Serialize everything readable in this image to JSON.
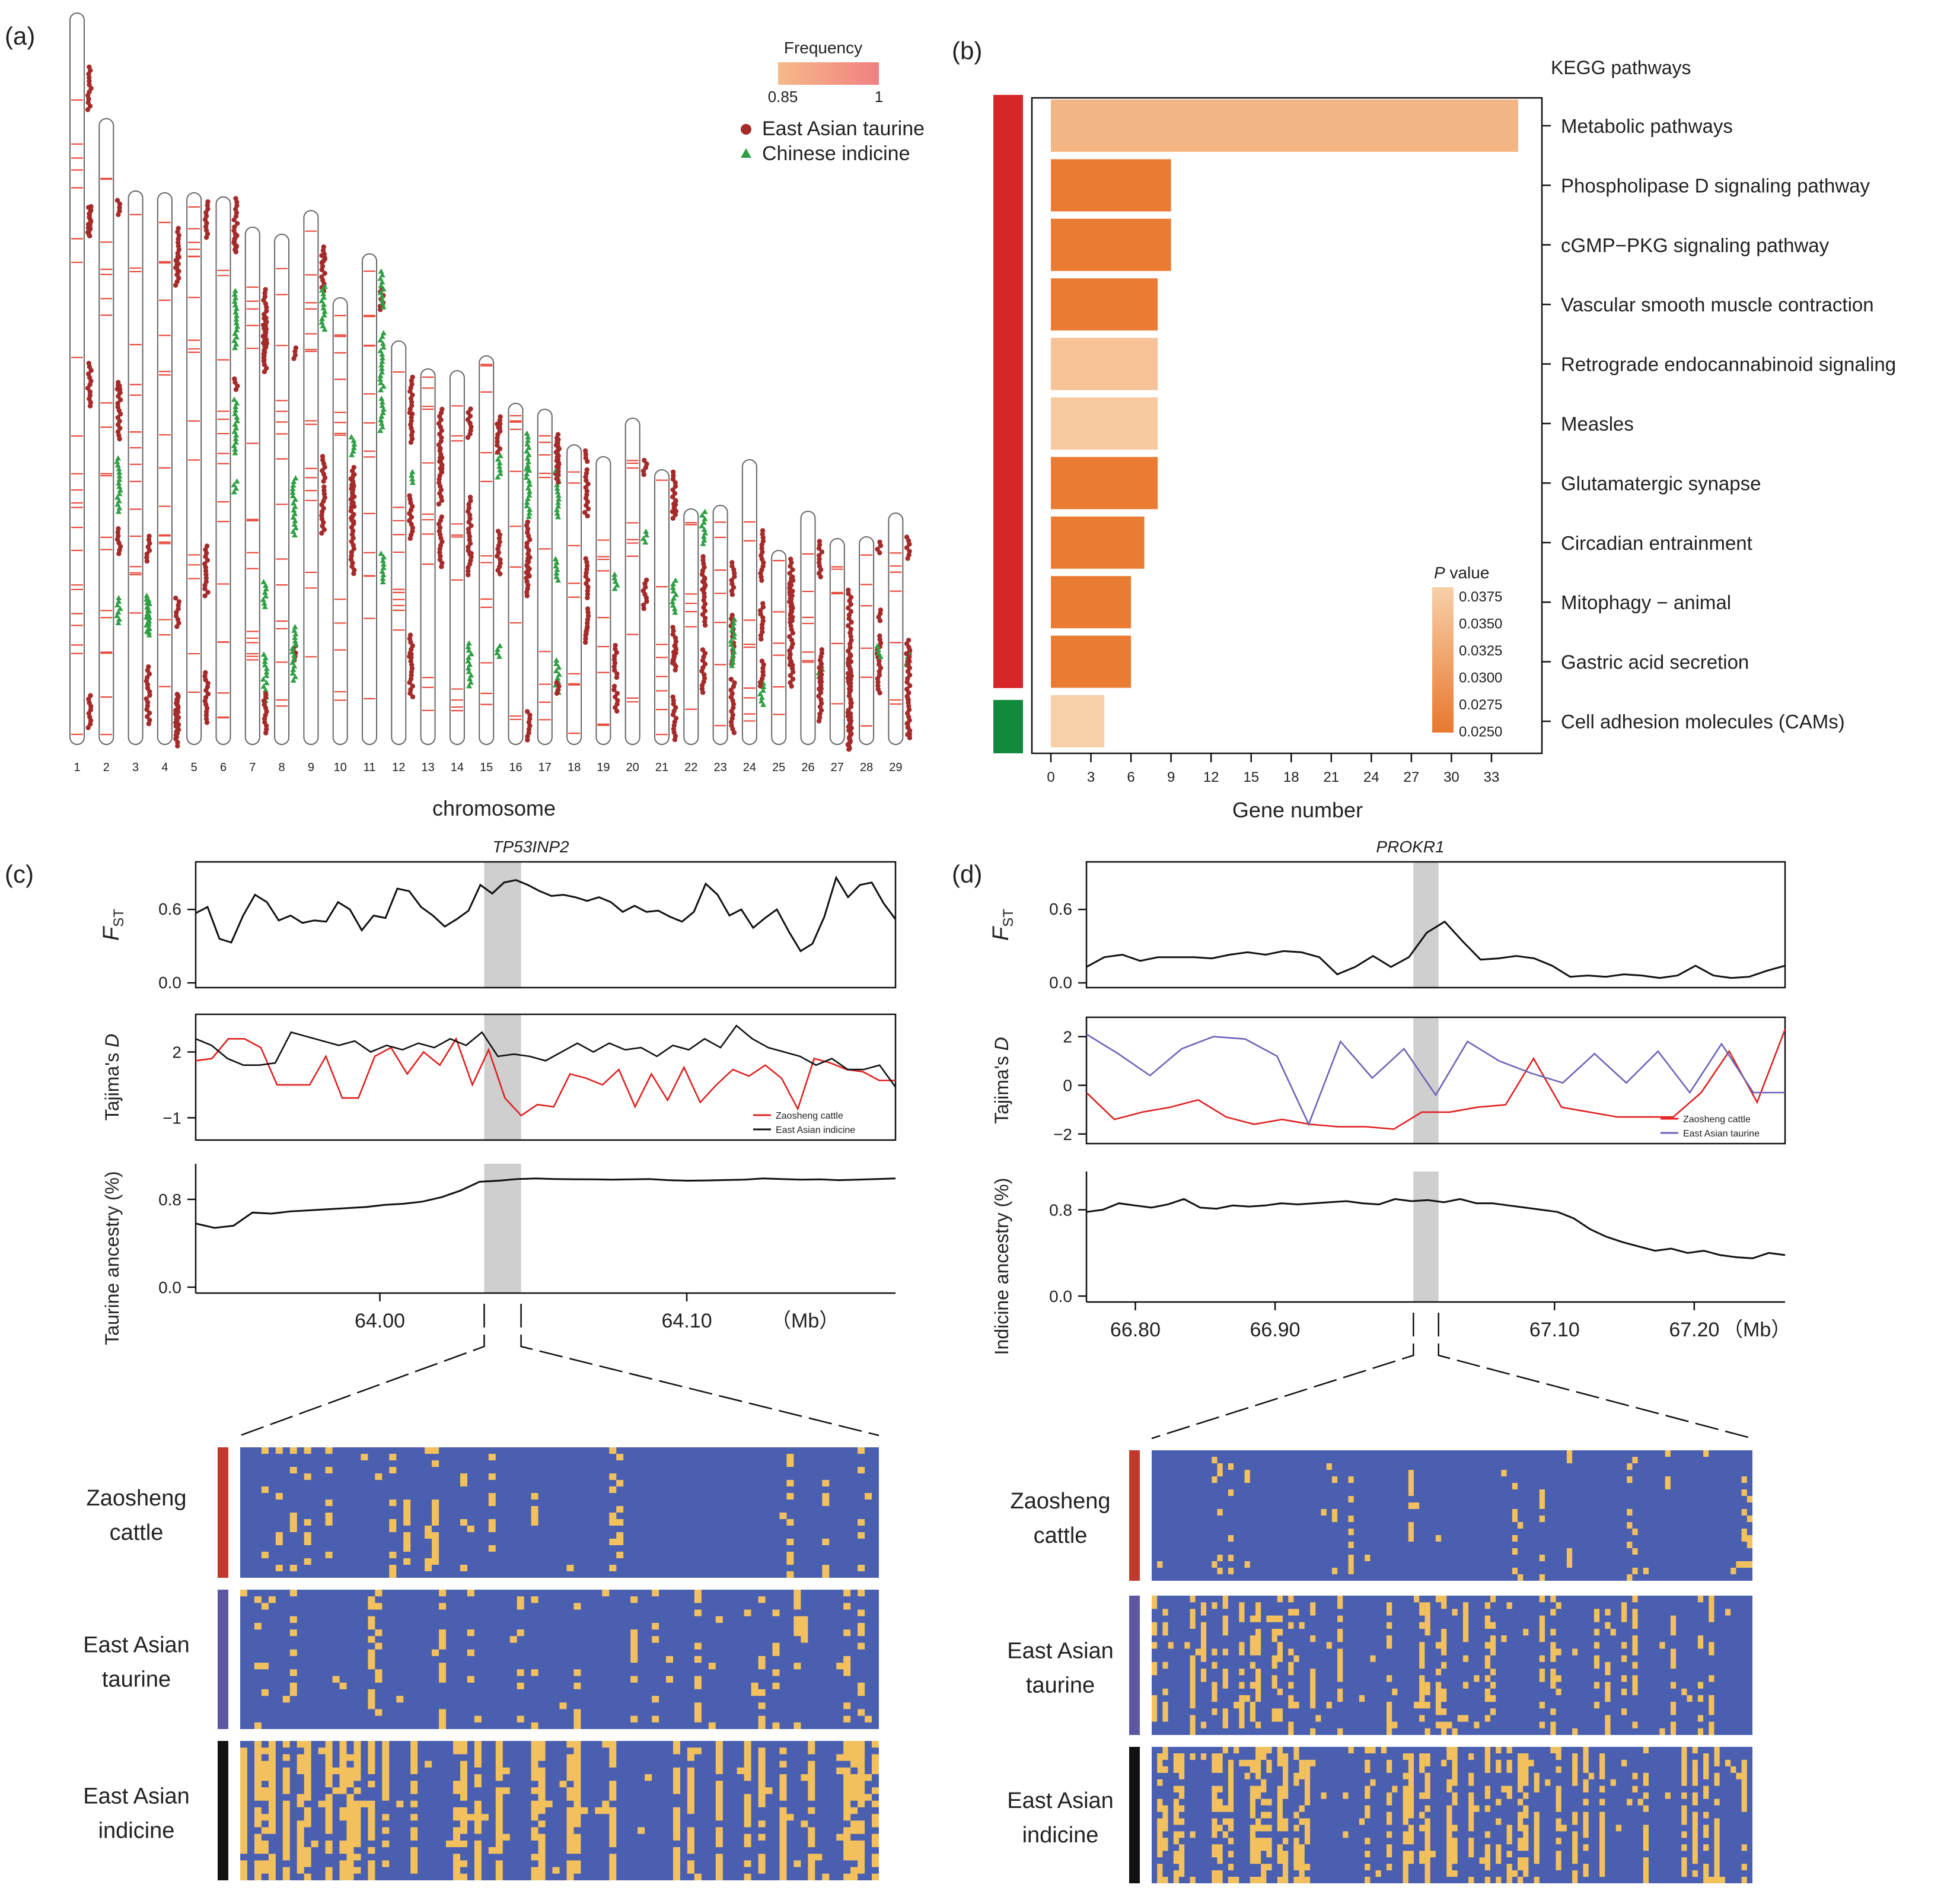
{
  "colors": {
    "taurine": "#a52a2a",
    "indicine": "#2ea043",
    "selected_line": "#e84a3c",
    "bar_low": "#e8782e",
    "bar_high": "#f6c8a3",
    "panel_red": "#d62728",
    "panel_green": "#128a3c",
    "hap_bg": "#4a5fb0",
    "hap_alt": "#f2c15d",
    "zaosheng": "#c0392b",
    "ea_taurine": "#5c57a0",
    "ea_indicine": "#111111",
    "tajima_blue": "#6b64b8"
  },
  "panel_a": {
    "label": "(a)",
    "xlabel": "chromosome",
    "chromosomes": [
      "1",
      "2",
      "3",
      "4",
      "5",
      "6",
      "7",
      "8",
      "9",
      "10",
      "11",
      "12",
      "13",
      "14",
      "15",
      "16",
      "17",
      "18",
      "19",
      "20",
      "21",
      "22",
      "23",
      "24",
      "25",
      "26",
      "27",
      "28",
      "29"
    ],
    "legend": {
      "title": "Frequency",
      "min": "0.85",
      "max": "1",
      "taurine": "East Asian taurine",
      "indicine": "Chinese indicine"
    }
  },
  "panel_b": {
    "label": "(b)",
    "header": "KEGG pathways",
    "xlabel": "Gene number",
    "ticks": [
      "0",
      "3",
      "6",
      "9",
      "12",
      "15",
      "18",
      "21",
      "24",
      "27",
      "30",
      "33"
    ],
    "legend_title_italic": "P",
    "legend_title_rest": " value",
    "legend_ticks": [
      "0.0375",
      "0.0350",
      "0.0325",
      "0.0300",
      "0.0275",
      "0.0250"
    ]
  },
  "chart_data": [
    {
      "type": "bar",
      "orientation": "horizontal",
      "title": "KEGG pathways",
      "xlabel": "Gene number",
      "xlim": [
        0,
        35
      ],
      "categories": [
        "Metabolic pathways",
        "Phospholipase D signaling pathway",
        "cGMP−PKG signaling pathway",
        "Vascular smooth muscle contraction",
        "Retrograde endocannabinoid signaling",
        "Measles",
        "Glutamatergic synapse",
        "Circadian entrainment",
        "Mitophagy − animal",
        "Gastric acid secretion",
        "Cell adhesion molecules (CAMs)"
      ],
      "values": [
        35,
        9,
        9,
        8,
        8,
        8,
        8,
        7,
        6,
        6,
        4
      ],
      "p_values": [
        0.0345,
        0.0255,
        0.0255,
        0.0255,
        0.0365,
        0.0375,
        0.0255,
        0.0255,
        0.0255,
        0.0255,
        0.0385
      ],
      "group": [
        "red",
        "red",
        "red",
        "red",
        "red",
        "red",
        "red",
        "red",
        "red",
        "red",
        "green"
      ]
    },
    {
      "type": "line",
      "panel": "c",
      "gene": "TP53INP2",
      "xlabel": "(Mb)",
      "xlim": [
        63.94,
        64.168
      ],
      "xticks": [
        "64.00",
        "64.10"
      ],
      "xtick_values": [
        64.0,
        64.1
      ],
      "highlight": [
        64.034,
        64.046
      ],
      "fst": {
        "ylabel_main": "F",
        "ylabel_sub": "ST",
        "yticks": [
          "0.0",
          "0.6"
        ],
        "ylim": [
          0,
          0.95
        ],
        "values": [
          0.57,
          0.62,
          0.36,
          0.33,
          0.55,
          0.72,
          0.66,
          0.51,
          0.55,
          0.49,
          0.51,
          0.5,
          0.66,
          0.6,
          0.43,
          0.55,
          0.53,
          0.77,
          0.75,
          0.62,
          0.55,
          0.46,
          0.52,
          0.59,
          0.8,
          0.73,
          0.82,
          0.84,
          0.8,
          0.75,
          0.71,
          0.72,
          0.7,
          0.67,
          0.7,
          0.66,
          0.58,
          0.63,
          0.58,
          0.59,
          0.54,
          0.5,
          0.58,
          0.81,
          0.72,
          0.55,
          0.6,
          0.45,
          0.53,
          0.6,
          0.42,
          0.26,
          0.32,
          0.54,
          0.86,
          0.7,
          0.8,
          0.82,
          0.65,
          0.52
        ]
      },
      "tajima": {
        "ylabel_main": "Tajima's ",
        "ylabel_italic": "D",
        "yticks": [
          "−1",
          "2"
        ],
        "ylim": [
          -1.8,
          3.5
        ],
        "series": [
          {
            "name": "Zaosheng cattle",
            "values": [
              1.6,
              1.7,
              2.6,
              2.6,
              2.2,
              0.5,
              0.5,
              0.5,
              1.8,
              -0.1,
              -0.1,
              1.8,
              2.2,
              1.0,
              2.0,
              1.4,
              2.6,
              0.5,
              2.1,
              -0.1,
              -0.9,
              -0.4,
              -0.5,
              1.0,
              0.8,
              0.5,
              1.2,
              -0.5,
              1.0,
              -0.2,
              1.3,
              -0.3,
              0.5,
              1.2,
              0.9,
              1.4,
              0.8,
              -0.6,
              1.7,
              1.5,
              1.2,
              1.1,
              0.7,
              0.7
            ]
          },
          {
            "name": "East Asian indicine",
            "values": [
              2.6,
              2.3,
              1.7,
              1.4,
              1.4,
              1.5,
              2.9,
              2.7,
              2.5,
              2.3,
              2.5,
              2.0,
              2.3,
              2.1,
              2.4,
              2.2,
              2.6,
              2.3,
              2.9,
              1.8,
              1.9,
              1.8,
              1.6,
              2.0,
              2.4,
              2.0,
              2.4,
              2.1,
              2.2,
              1.8,
              2.3,
              2.1,
              2.6,
              2.2,
              3.2,
              2.6,
              2.2,
              2.0,
              1.8,
              1.4,
              1.7,
              1.2,
              1.2,
              1.4,
              0.4
            ]
          }
        ]
      },
      "ancestry": {
        "ylabel": "Taurine ancestry (%)",
        "yticks": [
          "0.0",
          "0.8"
        ],
        "ylim": [
          0,
          1.07
        ],
        "values": [
          0.58,
          0.54,
          0.56,
          0.68,
          0.67,
          0.69,
          0.7,
          0.71,
          0.72,
          0.73,
          0.75,
          0.76,
          0.78,
          0.82,
          0.88,
          0.96,
          0.97,
          0.985,
          0.99,
          0.985,
          0.983,
          0.982,
          0.98,
          0.982,
          0.985,
          0.975,
          0.97,
          0.972,
          0.976,
          0.98,
          0.99,
          0.985,
          0.98,
          0.982,
          0.975,
          0.98,
          0.985,
          0.99
        ]
      }
    },
    {
      "type": "line",
      "panel": "d",
      "gene": "PROKR1",
      "xlabel": "(Mb)",
      "xlim": [
        66.765,
        67.265
      ],
      "xticks": [
        "66.80",
        "66.90",
        "67.10",
        "67.20"
      ],
      "xtick_values": [
        66.8,
        66.9,
        67.1,
        67.2
      ],
      "highlight": [
        66.999,
        67.017
      ],
      "fst": {
        "ylabel_main": "F",
        "ylabel_sub": "ST",
        "yticks": [
          "0.0",
          "0.6"
        ],
        "ylim": [
          0,
          0.95
        ],
        "values": [
          0.13,
          0.21,
          0.23,
          0.18,
          0.21,
          0.21,
          0.21,
          0.2,
          0.23,
          0.25,
          0.23,
          0.26,
          0.25,
          0.21,
          0.07,
          0.13,
          0.22,
          0.13,
          0.21,
          0.41,
          0.5,
          0.34,
          0.19,
          0.2,
          0.22,
          0.2,
          0.14,
          0.05,
          0.06,
          0.05,
          0.07,
          0.06,
          0.04,
          0.06,
          0.14,
          0.06,
          0.04,
          0.05,
          0.1,
          0.14
        ]
      },
      "tajima": {
        "ylabel_main": "Tajima's ",
        "ylabel_italic": "D",
        "yticks": [
          "−2",
          "0",
          "2"
        ],
        "ylim": [
          -2.2,
          2.6
        ],
        "series": [
          {
            "name": "Zaosheng cattle",
            "values": [
              -0.3,
              -1.4,
              -1.1,
              -0.9,
              -0.6,
              -1.3,
              -1.6,
              -1.4,
              -1.6,
              -1.7,
              -1.7,
              -1.8,
              -1.1,
              -1.1,
              -0.9,
              -0.8,
              1.1,
              -0.9,
              -1.1,
              -1.3,
              -1.3,
              -1.3,
              -0.3,
              1.4,
              -0.7,
              2.3
            ]
          },
          {
            "name": "East Asian taurine",
            "values": [
              2.1,
              1.3,
              0.4,
              1.5,
              2.0,
              1.9,
              1.2,
              -1.6,
              1.8,
              0.3,
              1.5,
              -0.4,
              1.8,
              1.0,
              0.5,
              0.1,
              1.3,
              0.1,
              1.4,
              -0.3,
              1.7,
              -0.3,
              -0.3
            ]
          }
        ]
      },
      "ancestry": {
        "ylabel": "Indicine ancestry (%)",
        "yticks": [
          "0.0",
          "0.8"
        ],
        "ylim": [
          0,
          1.1
        ],
        "values": [
          0.78,
          0.8,
          0.86,
          0.84,
          0.82,
          0.85,
          0.9,
          0.82,
          0.81,
          0.84,
          0.83,
          0.84,
          0.86,
          0.85,
          0.86,
          0.87,
          0.88,
          0.86,
          0.85,
          0.9,
          0.88,
          0.89,
          0.87,
          0.9,
          0.86,
          0.86,
          0.84,
          0.82,
          0.8,
          0.78,
          0.72,
          0.62,
          0.55,
          0.5,
          0.46,
          0.42,
          0.44,
          0.4,
          0.42,
          0.38,
          0.36,
          0.35,
          0.4,
          0.38
        ]
      }
    }
  ],
  "panel_c": {
    "label": "(c)",
    "gene": "TP53INP2",
    "xunit": "（Mb）",
    "legend": [
      "Zaosheng cattle",
      "East Asian indicine"
    ],
    "groups": [
      {
        "line1": "Zaosheng",
        "line2": "cattle"
      },
      {
        "line1": "East Asian",
        "line2": "taurine"
      },
      {
        "line1": "East Asian",
        "line2": "indicine"
      }
    ]
  },
  "panel_d": {
    "label": "(d)",
    "gene": "PROKR1",
    "xunit": "（Mb）",
    "legend": [
      "Zaosheng cattle",
      "East Asian taurine"
    ],
    "groups": [
      {
        "line1": "Zaosheng",
        "line2": "cattle"
      },
      {
        "line1": "East Asian",
        "line2": "taurine"
      },
      {
        "line1": "East Asian",
        "line2": "indicine"
      }
    ]
  }
}
